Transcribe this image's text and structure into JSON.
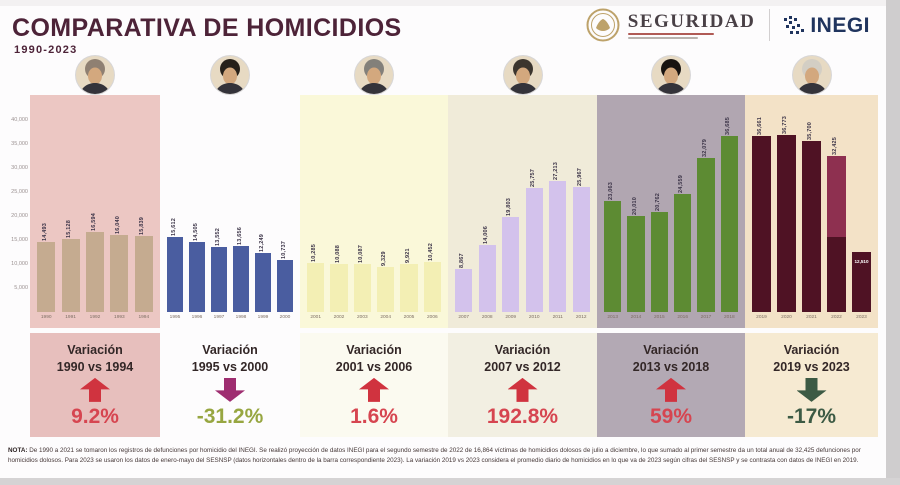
{
  "header": {
    "title": "COMPARATIVA DE HOMICIDIOS",
    "subtitle": "1990-2023"
  },
  "logos": {
    "seguridad_label": "SEGURIDAD",
    "inegi_label": "INEGI"
  },
  "chart_data": {
    "type": "bar",
    "title": "Comparativa de homicidios 1990-2023",
    "xlabel": "",
    "ylabel": "",
    "ylim": [
      0,
      40000
    ],
    "grid": false,
    "yticks": [
      "40,000",
      "35,000",
      "30,000",
      "25,000",
      "20,000",
      "15,000",
      "10,000",
      "5,000"
    ],
    "groups": [
      {
        "period": "1990-1994",
        "panel_color": "#ecc7c3",
        "bar_color": "#c5ab90",
        "years": [
          "1990",
          "1991",
          "1992",
          "1993",
          "1994"
        ],
        "values": [
          14493,
          15128,
          16594,
          16040,
          15839
        ],
        "value_labels": [
          "14,493",
          "15,128",
          "16,594",
          "16,040",
          "15,839"
        ],
        "variation": {
          "title": "Variación",
          "range": "1990 vs 1994",
          "direction": "up",
          "arrow_color": "#d0333f",
          "percent": "9.2%",
          "percent_color": "#d64550",
          "box_color": "#e7bfbd"
        }
      },
      {
        "period": "1995-2000",
        "panel_color": "#fdfcfd",
        "bar_color": "#4a5da0",
        "years": [
          "1995",
          "1996",
          "1997",
          "1998",
          "1999",
          "2000"
        ],
        "values": [
          15612,
          14505,
          13552,
          13656,
          12249,
          10737
        ],
        "value_labels": [
          "15,612",
          "14,505",
          "13,552",
          "13,656",
          "12,249",
          "10,737"
        ],
        "variation": {
          "title": "Variación",
          "range": "1995 vs 2000",
          "direction": "down",
          "arrow_color": "#9e2d70",
          "percent": "-31.2%",
          "percent_color": "#97a641",
          "box_color": "#fdfcfd"
        }
      },
      {
        "period": "2001-2006",
        "panel_color": "#faf8d9",
        "bar_color": "#f3efb4",
        "years": [
          "2001",
          "2002",
          "2003",
          "2004",
          "2005",
          "2006"
        ],
        "values": [
          10285,
          10088,
          10087,
          9329,
          9921,
          10452
        ],
        "value_labels": [
          "10,285",
          "10,088",
          "10,087",
          "9,329",
          "9,921",
          "10,452"
        ],
        "variation": {
          "title": "Variación",
          "range": "2001 vs 2006",
          "direction": "up",
          "arrow_color": "#d0333f",
          "percent": "1.6%",
          "percent_color": "#d64550",
          "box_color": "#fbfaf0"
        }
      },
      {
        "period": "2007-2012",
        "panel_color": "#f0ebd9",
        "bar_color": "#d3c2ec",
        "years": [
          "2007",
          "2008",
          "2009",
          "2010",
          "2011",
          "2012"
        ],
        "values": [
          8867,
          14006,
          19803,
          25757,
          27213,
          25967
        ],
        "value_labels": [
          "8,867",
          "14,006",
          "19,803",
          "25,757",
          "27,213",
          "25,967"
        ],
        "variation": {
          "title": "Variación",
          "range": "2007 vs 2012",
          "direction": "up",
          "arrow_color": "#d0333f",
          "percent": "192.8%",
          "percent_color": "#d64550",
          "box_color": "#f2efe2"
        }
      },
      {
        "period": "2013-2018",
        "panel_color": "#b1a6b1",
        "bar_color": "#5d8b33",
        "years": [
          "2013",
          "2014",
          "2015",
          "2016",
          "2017",
          "2018"
        ],
        "values": [
          23063,
          20010,
          20762,
          24559,
          32079,
          36685
        ],
        "value_labels": [
          "23,063",
          "20,010",
          "20,762",
          "24,559",
          "32,079",
          "36,685"
        ],
        "variation": {
          "title": "Variación",
          "range": "2013 vs 2018",
          "direction": "up",
          "arrow_color": "#d0333f",
          "percent": "59%",
          "percent_color": "#d64550",
          "box_color": "#b3a9b4"
        }
      },
      {
        "period": "2019-2023",
        "panel_color": "#f3e2c7",
        "bar_color": "#4f1224",
        "years": [
          "2019",
          "2020",
          "2021",
          "2022",
          "2023"
        ],
        "values": [
          36661,
          36773,
          35700,
          32425,
          12510
        ],
        "value_labels": [
          "36,661",
          "36,773",
          "35,700",
          "32,425",
          "12,510"
        ],
        "overrides": {
          "3": {
            "top_segment_value": 16864,
            "top_segment_color": "#8e3050"
          },
          "4": {
            "inner_label": "12,510"
          }
        },
        "variation": {
          "title": "Variación",
          "range": "2019 vs 2023",
          "direction": "down",
          "arrow_color": "#3c5a44",
          "percent": "-17%",
          "percent_color": "#3c5a44",
          "box_color": "#f6ead2"
        }
      }
    ]
  },
  "footnote": {
    "prefix": "NOTA:",
    "text": "De 1990 a 2021 se tomaron los registros de defunciones por homicidio del INEGI. Se realizó proyección de datos INEGI para el segundo semestre de 2022 de 16,864 víctimas de homicidios dolosos de julio a diciembre, lo que sumado al primer semestre da un total anual de 32,425 defunciones por homicidios dolosos. Para 2023 se usaron los datos de enero-mayo del SESNSP (datos horizontales dentro de la barra correspondiente 2023). La variación 2019 vs 2023 considera el promedio diario de homicidios en lo que va de 2023 según cifras del SESNSP y se contrasta con datos de INEGI en 2019."
  }
}
